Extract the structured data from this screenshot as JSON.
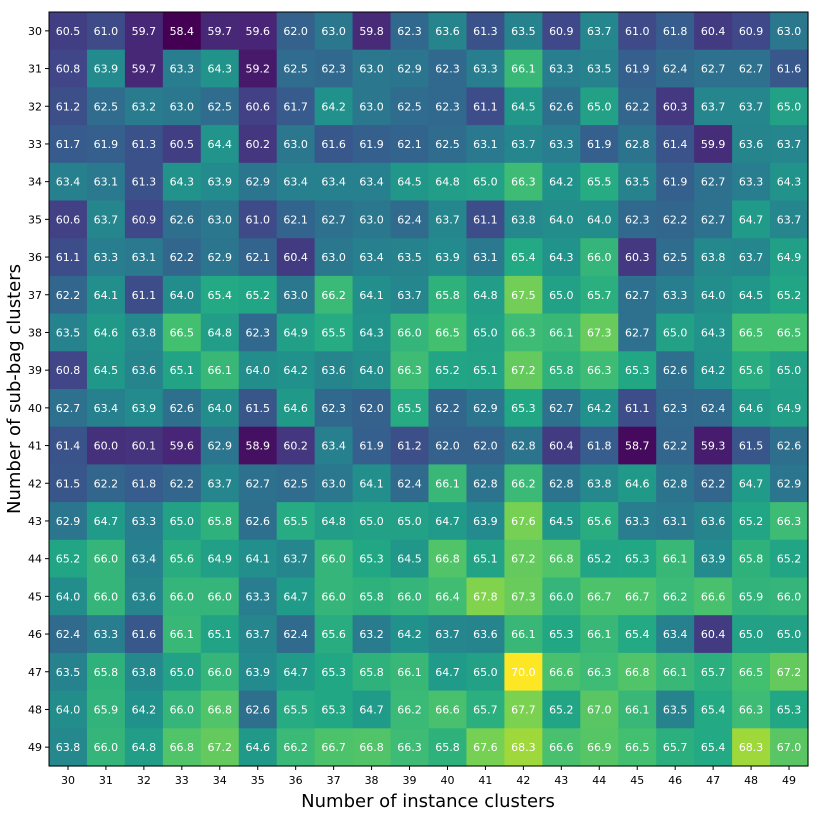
{
  "chart_data": {
    "type": "heatmap",
    "title": "",
    "xlabel": "Number of instance clusters",
    "ylabel": "Number of sub-bag clusters",
    "colormap": "viridis",
    "x": [
      "30",
      "31",
      "32",
      "33",
      "34",
      "35",
      "36",
      "37",
      "38",
      "39",
      "40",
      "41",
      "42",
      "43",
      "44",
      "45",
      "46",
      "47",
      "48",
      "49"
    ],
    "y": [
      "30",
      "31",
      "32",
      "33",
      "34",
      "35",
      "36",
      "37",
      "38",
      "39",
      "40",
      "41",
      "42",
      "43",
      "44",
      "45",
      "46",
      "47",
      "48",
      "49"
    ],
    "vmin": 58.4,
    "vmax": 70.0,
    "values": [
      [
        "60.5",
        "61.0",
        "59.7",
        "58.4",
        "59.7",
        "59.6",
        "62.0",
        "63.0",
        "59.8",
        "62.3",
        "63.6",
        "61.3",
        "63.5",
        "60.9",
        "63.7",
        "61.0",
        "61.8",
        "60.4",
        "60.9",
        "63.0"
      ],
      [
        "60.8",
        "63.9",
        "59.7",
        "63.3",
        "64.3",
        "59.2",
        "62.5",
        "62.3",
        "63.0",
        "62.9",
        "62.3",
        "63.3",
        "66.1",
        "63.3",
        "63.5",
        "61.9",
        "62.4",
        "62.7",
        "62.7",
        "61.6"
      ],
      [
        "61.2",
        "62.5",
        "63.2",
        "63.0",
        "62.5",
        "60.6",
        "61.7",
        "64.2",
        "63.0",
        "62.5",
        "62.3",
        "61.1",
        "64.5",
        "62.6",
        "65.0",
        "62.2",
        "60.3",
        "63.7",
        "63.7",
        "65.0"
      ],
      [
        "61.7",
        "61.9",
        "61.3",
        "60.5",
        "64.4",
        "60.2",
        "63.0",
        "61.6",
        "61.9",
        "62.1",
        "62.5",
        "63.1",
        "63.7",
        "63.3",
        "61.9",
        "62.8",
        "61.4",
        "59.9",
        "63.6",
        "63.7"
      ],
      [
        "63.4",
        "63.1",
        "61.3",
        "64.3",
        "63.9",
        "62.9",
        "63.4",
        "63.4",
        "63.4",
        "64.5",
        "64.8",
        "65.0",
        "66.3",
        "64.2",
        "65.5",
        "63.5",
        "61.9",
        "62.7",
        "63.3",
        "64.3"
      ],
      [
        "60.6",
        "63.7",
        "60.9",
        "62.6",
        "63.0",
        "61.0",
        "62.1",
        "62.7",
        "63.0",
        "62.4",
        "63.7",
        "61.1",
        "63.8",
        "64.0",
        "64.0",
        "62.3",
        "62.2",
        "62.7",
        "64.7",
        "63.7"
      ],
      [
        "61.1",
        "63.3",
        "63.1",
        "62.2",
        "62.9",
        "62.1",
        "60.4",
        "63.0",
        "63.4",
        "63.5",
        "63.9",
        "63.1",
        "65.4",
        "64.3",
        "66.0",
        "60.3",
        "62.5",
        "63.8",
        "63.7",
        "64.9"
      ],
      [
        "62.2",
        "64.1",
        "61.1",
        "64.0",
        "65.4",
        "65.2",
        "63.0",
        "66.2",
        "64.1",
        "63.7",
        "65.8",
        "64.8",
        "67.5",
        "65.0",
        "65.7",
        "62.7",
        "63.3",
        "64.0",
        "64.5",
        "65.2"
      ],
      [
        "63.5",
        "64.6",
        "63.8",
        "66.5",
        "64.8",
        "62.3",
        "64.9",
        "65.5",
        "64.3",
        "66.0",
        "66.5",
        "65.0",
        "66.3",
        "66.1",
        "67.3",
        "62.7",
        "65.0",
        "64.3",
        "66.5",
        "66.5"
      ],
      [
        "60.8",
        "64.5",
        "63.6",
        "65.1",
        "66.1",
        "64.0",
        "64.2",
        "63.6",
        "64.0",
        "66.3",
        "65.2",
        "65.1",
        "67.2",
        "65.8",
        "66.3",
        "65.3",
        "62.6",
        "64.2",
        "65.6",
        "65.0"
      ],
      [
        "62.7",
        "63.4",
        "63.9",
        "62.6",
        "64.0",
        "61.5",
        "64.6",
        "62.3",
        "62.0",
        "65.5",
        "62.2",
        "62.9",
        "65.3",
        "62.7",
        "64.2",
        "61.1",
        "62.3",
        "62.4",
        "64.6",
        "64.9"
      ],
      [
        "61.4",
        "60.0",
        "60.1",
        "59.6",
        "62.9",
        "58.9",
        "60.2",
        "63.4",
        "61.9",
        "61.2",
        "62.0",
        "62.0",
        "62.8",
        "60.4",
        "61.8",
        "58.7",
        "62.2",
        "59.3",
        "61.5",
        "62.6"
      ],
      [
        "61.5",
        "62.2",
        "61.8",
        "62.2",
        "63.7",
        "62.7",
        "62.5",
        "63.0",
        "64.1",
        "62.4",
        "66.1",
        "62.8",
        "66.2",
        "62.8",
        "63.8",
        "64.6",
        "62.8",
        "62.2",
        "64.7",
        "62.9"
      ],
      [
        "62.9",
        "64.7",
        "63.3",
        "65.0",
        "65.8",
        "62.6",
        "65.5",
        "64.8",
        "65.0",
        "65.0",
        "64.7",
        "63.9",
        "67.6",
        "64.5",
        "65.6",
        "63.3",
        "63.1",
        "63.6",
        "65.2",
        "66.3"
      ],
      [
        "65.2",
        "66.0",
        "63.4",
        "65.6",
        "64.9",
        "64.1",
        "63.7",
        "66.0",
        "65.3",
        "64.5",
        "66.8",
        "65.1",
        "67.2",
        "66.8",
        "65.2",
        "65.3",
        "66.1",
        "63.9",
        "65.8",
        "65.2"
      ],
      [
        "64.0",
        "66.0",
        "63.6",
        "66.0",
        "66.0",
        "63.3",
        "64.7",
        "66.0",
        "65.8",
        "66.0",
        "66.4",
        "67.8",
        "67.3",
        "66.0",
        "66.7",
        "66.7",
        "66.2",
        "66.6",
        "65.9",
        "66.0"
      ],
      [
        "62.4",
        "63.3",
        "61.6",
        "66.1",
        "65.1",
        "63.7",
        "62.4",
        "65.6",
        "63.2",
        "64.2",
        "63.7",
        "63.6",
        "66.1",
        "65.3",
        "66.1",
        "65.4",
        "63.4",
        "60.4",
        "65.0",
        "65.0"
      ],
      [
        "63.5",
        "65.8",
        "63.8",
        "65.0",
        "66.0",
        "63.9",
        "64.7",
        "65.3",
        "65.8",
        "66.1",
        "64.7",
        "65.0",
        "70.0",
        "66.6",
        "66.3",
        "66.8",
        "66.1",
        "65.7",
        "66.5",
        "67.2"
      ],
      [
        "64.0",
        "65.9",
        "64.2",
        "66.0",
        "66.8",
        "62.6",
        "65.5",
        "65.3",
        "64.7",
        "66.2",
        "66.6",
        "65.7",
        "67.7",
        "65.2",
        "67.0",
        "66.1",
        "63.5",
        "65.4",
        "66.3",
        "65.3"
      ],
      [
        "63.8",
        "66.0",
        "64.8",
        "66.8",
        "67.2",
        "64.6",
        "66.2",
        "66.7",
        "66.8",
        "66.3",
        "65.8",
        "67.6",
        "68.3",
        "66.6",
        "66.9",
        "66.5",
        "65.7",
        "65.4",
        "68.3",
        "67.0"
      ]
    ]
  }
}
